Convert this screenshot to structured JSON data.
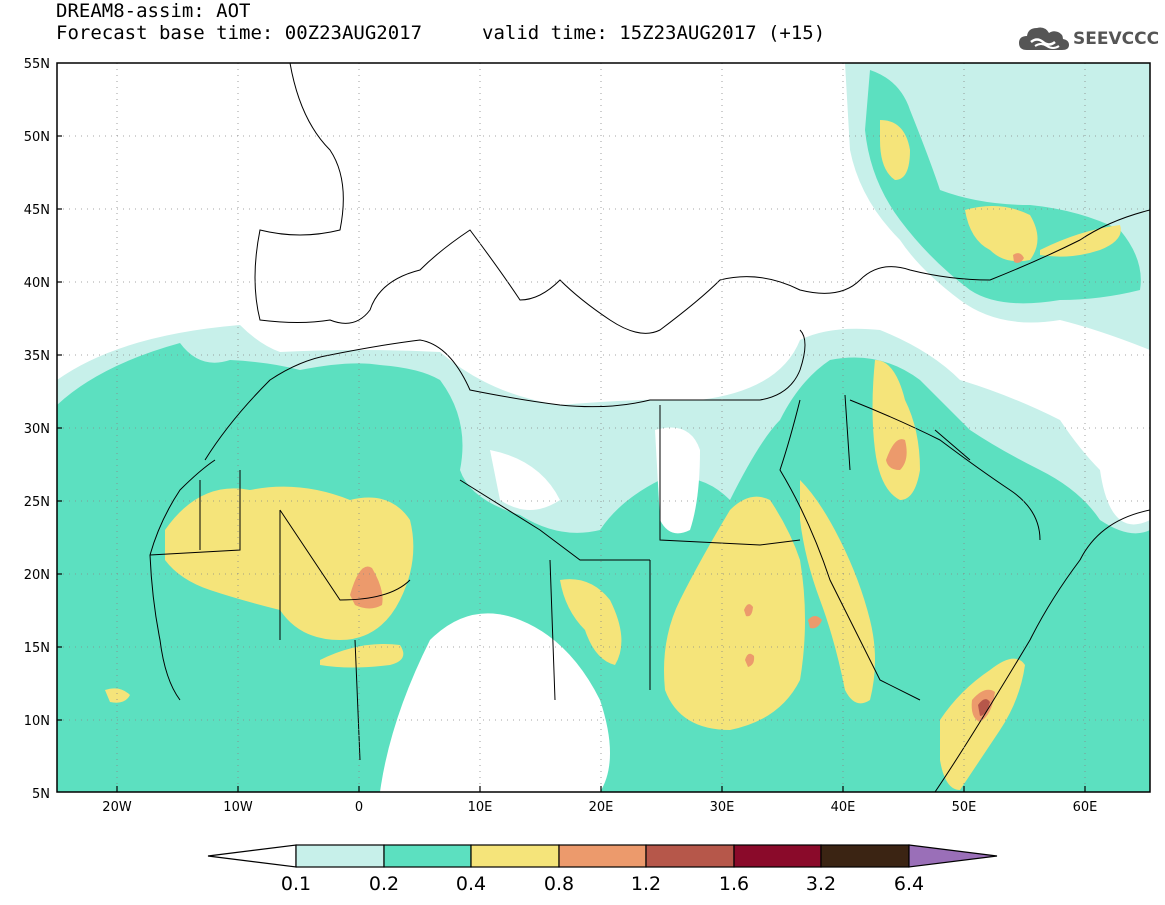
{
  "header": {
    "title": "DREAM8-assim: AOT",
    "base_time": "Forecast base time: 00Z23AUG2017",
    "valid_time": "valid time: 15Z23AUG2017 (+15)"
  },
  "logo": {
    "text": "SEEVCCC",
    "icon": "cloud-logo-icon",
    "color": "#555555"
  },
  "map": {
    "lon_range": [
      -25,
      65
    ],
    "lat_range": [
      5,
      55
    ],
    "lat_labels": [
      "55N",
      "50N",
      "45N",
      "40N",
      "35N",
      "30N",
      "25N",
      "20N",
      "15N",
      "10N",
      "5N"
    ],
    "lon_labels": [
      "20W",
      "10W",
      "0",
      "10E",
      "20E",
      "30E",
      "40E",
      "50E",
      "60E"
    ]
  },
  "legend": {
    "colors": [
      "#c7f0ea",
      "#5ce0c0",
      "#f5e47a",
      "#ec9a6c",
      "#b6574a",
      "#8a0a2a",
      "#3b2413",
      "#9a6fb8"
    ],
    "labels": [
      "0.1",
      "0.2",
      "0.4",
      "0.8",
      "1.2",
      "1.6",
      "3.2",
      "6.4"
    ]
  }
}
